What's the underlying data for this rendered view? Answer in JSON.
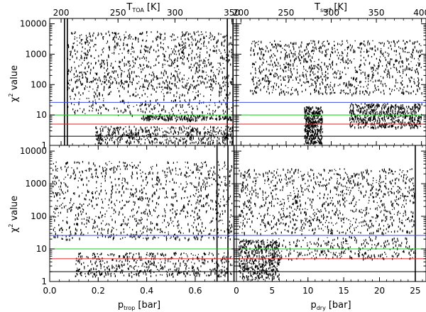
{
  "chart_data": [
    {
      "type": "scatter",
      "panel": "top-left",
      "top_axis": {
        "label": "T",
        "label_sub": "TOA",
        "label_unit": "[K]",
        "ticks": [
          200,
          250,
          300,
          350
        ],
        "range": [
          190,
          354
        ]
      },
      "y_axis": {
        "label_pre": "χ",
        "label_sup": "2",
        "label_post": " value",
        "scale": "log",
        "range": [
          1,
          15000
        ],
        "ticks": [
          1,
          10,
          100,
          1000,
          10000
        ],
        "tick_labels": [
          "1",
          "10",
          "100",
          "1000",
          "10000"
        ]
      },
      "vertical_lines": [
        203,
        205.5,
        346,
        351
      ],
      "horizontal_lines": [
        {
          "y": 26,
          "color": "#3b4de0"
        },
        {
          "y": 10,
          "color": "#19c819"
        },
        {
          "y": 5,
          "color": "#e02020"
        },
        {
          "y": 2,
          "color": "#000000"
        }
      ],
      "series": [
        {
          "x_range": [
            205,
            350
          ],
          "y_range": [
            80,
            6000
          ],
          "density": 900
        },
        {
          "x_range": [
            205,
            350
          ],
          "y_range": [
            10,
            200
          ],
          "density": 400
        },
        {
          "x_range": [
            230,
            350
          ],
          "y_range": [
            1.2,
            4.5
          ],
          "density": 500
        },
        {
          "x_range": [
            270,
            350
          ],
          "y_range": [
            7,
            10
          ],
          "density": 200
        }
      ]
    },
    {
      "type": "scatter",
      "panel": "top-right",
      "top_axis": {
        "label": "T",
        "label_sub": "surf",
        "label_unit": "[K]",
        "ticks": [
          200,
          250,
          300,
          350,
          400
        ],
        "range": [
          195,
          405
        ]
      },
      "y_axis": {
        "scale": "log",
        "range": [
          1,
          15000
        ]
      },
      "horizontal_lines": [
        {
          "y": 26,
          "color": "#3b4de0"
        },
        {
          "y": 10,
          "color": "#19c819"
        },
        {
          "y": 5,
          "color": "#e02020"
        },
        {
          "y": 2,
          "color": "#000000"
        }
      ],
      "series": [
        {
          "x_range": [
            210,
            400
          ],
          "y_range": [
            50,
            3000
          ],
          "density": 1000
        },
        {
          "x_range": [
            270,
            290
          ],
          "y_range": [
            1.2,
            20
          ],
          "density": 400
        },
        {
          "x_range": [
            320,
            400
          ],
          "y_range": [
            4,
            25
          ],
          "density": 600
        }
      ]
    },
    {
      "type": "scatter",
      "panel": "bottom-left",
      "x_axis": {
        "label": "p",
        "label_sub": "trop",
        "label_unit": "[bar]",
        "ticks": [
          0.0,
          0.2,
          0.4,
          0.6
        ],
        "tick_labels": [
          "0.0",
          "0.2",
          "0.4",
          "0.6"
        ],
        "range": [
          0,
          0.77
        ]
      },
      "y_axis": {
        "label_pre": "χ",
        "label_sup": "2",
        "label_post": " value",
        "scale": "log",
        "range": [
          1,
          15000
        ],
        "ticks": [
          1,
          10,
          100,
          1000,
          10000
        ],
        "tick_labels": [
          "1",
          "10",
          "100",
          "1000",
          "10000"
        ]
      },
      "vertical_lines": [
        0.69,
        0.735,
        0.76
      ],
      "horizontal_lines": [
        {
          "y": 26,
          "color": "#3b4de0"
        },
        {
          "y": 10,
          "color": "#19c819"
        },
        {
          "y": 5,
          "color": "#e02020"
        },
        {
          "y": 2,
          "color": "#000000"
        }
      ],
      "series": [
        {
          "x_range": [
            0.01,
            0.75
          ],
          "y_range": [
            20,
            5000
          ],
          "density": 1100
        },
        {
          "x_range": [
            0.1,
            0.75
          ],
          "y_range": [
            1.5,
            8
          ],
          "density": 500
        }
      ]
    },
    {
      "type": "scatter",
      "panel": "bottom-right",
      "x_axis": {
        "label": "p",
        "label_sub": "dry",
        "label_unit": "[bar]",
        "ticks": [
          0,
          5,
          10,
          15,
          20,
          25
        ],
        "tick_labels": [
          "0",
          "5",
          "10",
          "15",
          "20",
          "25"
        ],
        "range": [
          0,
          26.5
        ]
      },
      "y_axis": {
        "scale": "log",
        "range": [
          1,
          15000
        ]
      },
      "vertical_lines": [
        25
      ],
      "horizontal_lines": [
        {
          "y": 26,
          "color": "#3b4de0"
        },
        {
          "y": 10,
          "color": "#19c819"
        },
        {
          "y": 5,
          "color": "#e02020"
        },
        {
          "y": 2,
          "color": "#000000"
        }
      ],
      "series": [
        {
          "x_range": [
            0.3,
            25
          ],
          "y_range": [
            30,
            3000
          ],
          "density": 1100
        },
        {
          "x_range": [
            0.3,
            6
          ],
          "y_range": [
            1.2,
            20
          ],
          "density": 500
        },
        {
          "x_range": [
            5,
            25
          ],
          "y_range": [
            5,
            25
          ],
          "density": 300
        }
      ]
    }
  ]
}
